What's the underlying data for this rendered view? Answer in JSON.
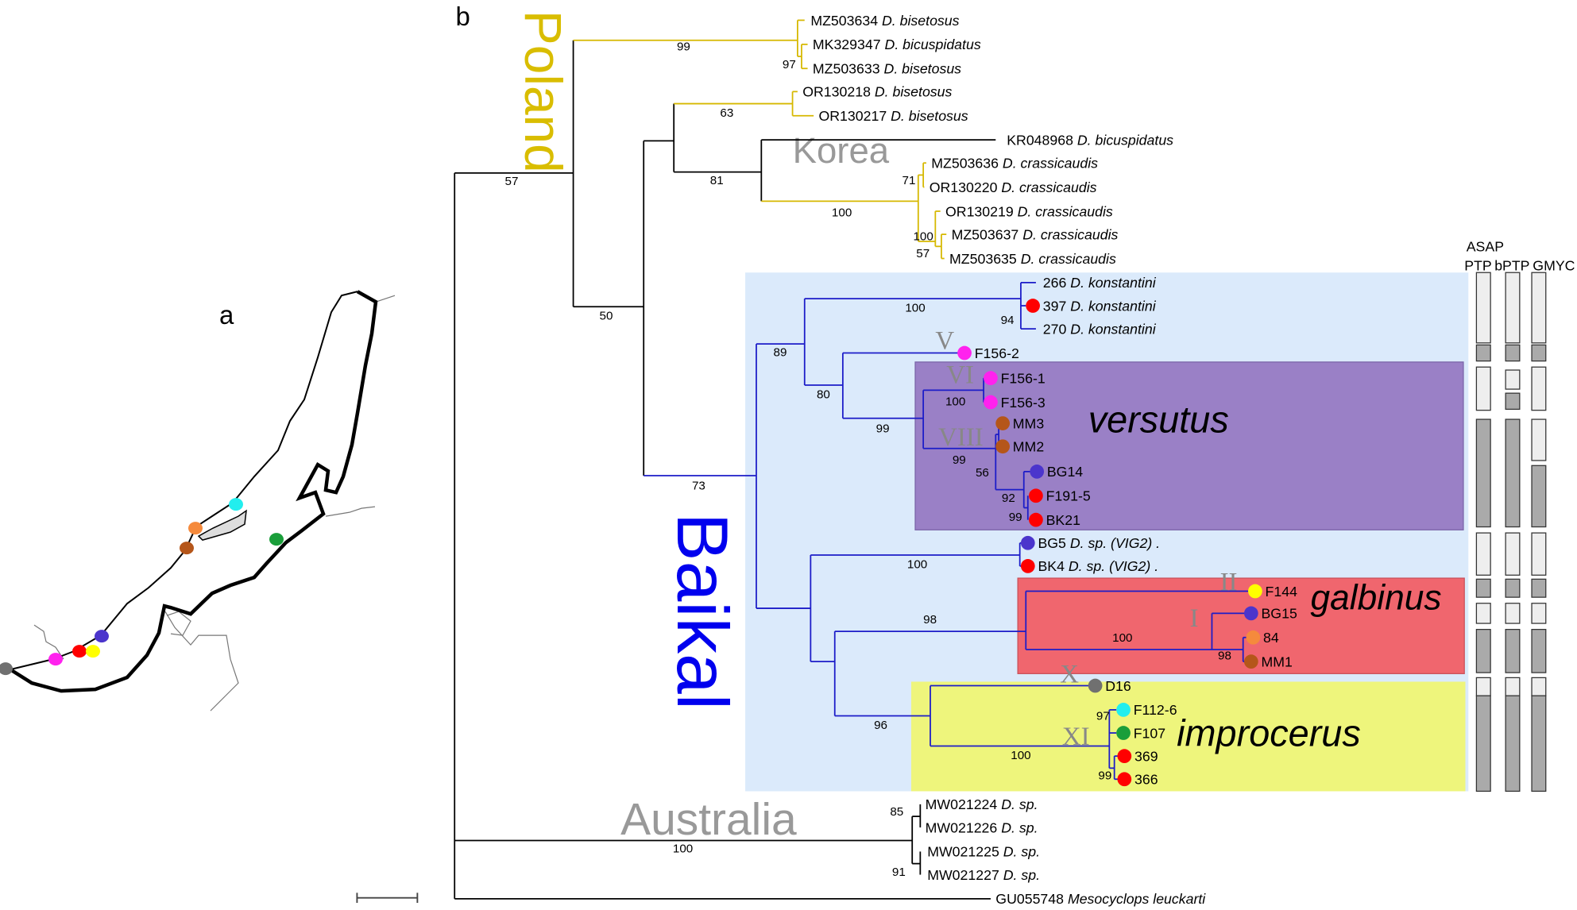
{
  "panels": {
    "a": "a",
    "b": "b"
  },
  "regions": {
    "poland": "Poland",
    "korea": "Korea",
    "baikal": "Baikal",
    "australia": "Australia"
  },
  "clades": {
    "versutus": "versutus",
    "galbinus": "galbinus",
    "improcerus": "improcerus"
  },
  "clade_colors": {
    "baikal_bg": "#dbeafb",
    "versutus": "#9a80c6",
    "galbinus": "#f0666e",
    "improcerus": "#eef57c"
  },
  "branch_colors": {
    "poland": "#d6b800",
    "baikal": "#1c1cc8",
    "other": "#000000"
  },
  "haplogroups": [
    "V",
    "VI",
    "VIII",
    "II",
    "I",
    "X",
    "XI"
  ],
  "methods": {
    "top": "ASAP",
    "columns": [
      "PTP",
      "bPTP",
      "GMYC"
    ]
  },
  "delimitation": {
    "PTP": [
      "light",
      "dark",
      "light",
      "dark",
      "light",
      "dark",
      "light",
      "dark",
      "light",
      "dark"
    ],
    "bPTP": [
      "light",
      "dark",
      "light",
      "dark",
      "dark",
      "light",
      "dark",
      "light",
      "dark",
      "light",
      "dark"
    ],
    "GMYC": [
      "light",
      "dark",
      "light",
      "light",
      "dark",
      "light",
      "dark",
      "light",
      "dark",
      "light",
      "dark"
    ]
  },
  "leaves": [
    {
      "id": "MZ503634",
      "species": "D. bisetosus"
    },
    {
      "id": "MK329347",
      "species": "D. bicuspidatus"
    },
    {
      "id": "MZ503633",
      "species": "D. bisetosus"
    },
    {
      "id": "OR130218",
      "species": "D. bisetosus"
    },
    {
      "id": "OR130217",
      "species": "D. bisetosus"
    },
    {
      "id": "KR048968",
      "species": "D. bicuspidatus"
    },
    {
      "id": "MZ503636",
      "species": "D. crassicaudis"
    },
    {
      "id": "OR130220",
      "species": "D. crassicaudis"
    },
    {
      "id": "OR130219",
      "species": "D. crassicaudis"
    },
    {
      "id": "MZ503637",
      "species": "D. crassicaudis"
    },
    {
      "id": "MZ503635",
      "species": "D. crassicaudis"
    },
    {
      "id": "266",
      "species": "D. konstantini"
    },
    {
      "id": "397",
      "species": "D. konstantini",
      "site_color": "#ff0000"
    },
    {
      "id": "270 ",
      "species": "D. konstantini"
    },
    {
      "id": "F156-2",
      "site_color": "#ff22ee"
    },
    {
      "id": "F156-1",
      "site_color": "#ff22ee"
    },
    {
      "id": "F156-3",
      "site_color": "#ff22ee"
    },
    {
      "id": "MM3",
      "site_color": "#b5561a"
    },
    {
      "id": "MM2",
      "site_color": "#b5561a"
    },
    {
      "id": "BG14",
      "site_color": "#4b35cc"
    },
    {
      "id": "F191-5",
      "site_color": "#ff0000"
    },
    {
      "id": "BK21",
      "site_color": "#ff0000"
    },
    {
      "id": "BG5",
      "species": "D. sp. (VIG2) .",
      "site_color": "#4b35cc"
    },
    {
      "id": "BK4",
      "species": "D. sp. (VIG2) .",
      "site_color": "#ff0000"
    },
    {
      "id": "F144",
      "site_color": "#ffff00"
    },
    {
      "id": "BG15",
      "site_color": "#4b35cc"
    },
    {
      "id": "84",
      "site_color": "#f58a3c"
    },
    {
      "id": "MM1",
      "site_color": "#b5561a"
    },
    {
      "id": "D16",
      "site_color": "#707070"
    },
    {
      "id": "F112-6",
      "site_color": "#22eeee"
    },
    {
      "id": "F107",
      "site_color": "#1a9e3a"
    },
    {
      "id": "369",
      "site_color": "#ff0000"
    },
    {
      "id": "366",
      "site_color": "#ff0000"
    },
    {
      "id": "MW021224",
      "species": "D. sp."
    },
    {
      "id": "MW021226",
      "species": "D. sp."
    },
    {
      "id": "MW021225",
      "species": "D. sp."
    },
    {
      "id": "MW021227",
      "species": "D. sp."
    },
    {
      "id": "GU055748",
      "species": "Mesocyclops leuckarti"
    }
  ],
  "bootstrap": [
    "99",
    "97",
    "63",
    "81",
    "71",
    "100",
    "100",
    "57",
    "57",
    "50",
    "73",
    "100",
    "94",
    "89",
    "80",
    "99",
    "100",
    "99",
    "56",
    "92",
    "99",
    "100",
    "98",
    "100",
    "98",
    "96",
    "100",
    "97",
    "99",
    "85",
    "91",
    "100"
  ],
  "map_sites": [
    "#22eeee",
    "#f58a3c",
    "#b5561a",
    "#1a9e3a",
    "#4b35cc",
    "#ff0000",
    "#ffff00",
    "#ff22ee",
    "#707070"
  ]
}
